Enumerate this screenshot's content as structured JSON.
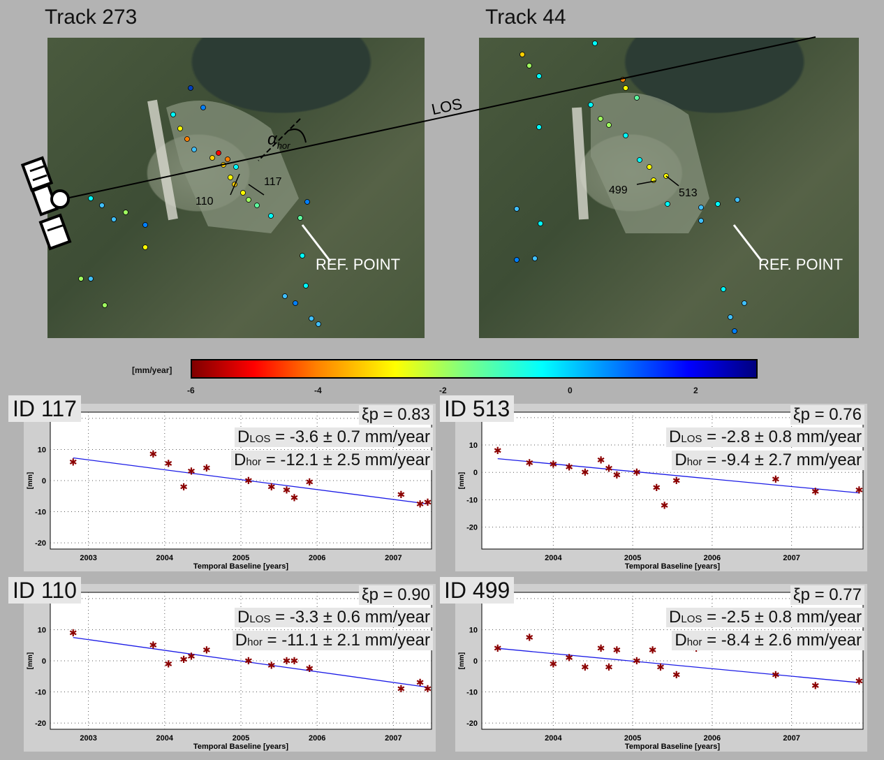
{
  "maps": [
    {
      "title": "Track 273",
      "annotations": {
        "los": "LOS",
        "alpha": "α",
        "alpha_sub": "hor",
        "ref": "REF. POINT",
        "pt_a": "117",
        "pt_b": "110"
      }
    },
    {
      "title": "Track 44",
      "annotations": {
        "ref": "REF. POINT",
        "pt_a": "499",
        "pt_b": "513"
      }
    }
  ],
  "colorbar": {
    "unit": "[mm/year]",
    "ticks": [
      "-6",
      "-4",
      "-2",
      "0",
      "2"
    ],
    "min": -6,
    "max": 3
  },
  "chart_data": [
    {
      "type": "scatter",
      "id_label": "ID 117",
      "xi": "ξp = 0.83",
      "dlos": "-3.6 ± 0.7 mm/year",
      "dhor": "-12.1 ± 2.5 mm/year",
      "xlabel": "Temporal Baseline [years]",
      "ylabel": "[mm]",
      "xlim": [
        2002.5,
        2007.5
      ],
      "ylim": [
        -22,
        22
      ],
      "xticks": [
        "2003",
        "2004",
        "2005",
        "2006",
        "2007"
      ],
      "yticks": [
        "-20",
        "-10",
        "0",
        "10",
        "20"
      ],
      "points": [
        [
          2002.8,
          6
        ],
        [
          2003.85,
          8.5
        ],
        [
          2004.05,
          5.5
        ],
        [
          2004.25,
          -2
        ],
        [
          2004.35,
          3
        ],
        [
          2004.55,
          4
        ],
        [
          2005.1,
          0
        ],
        [
          2005.4,
          -2
        ],
        [
          2005.6,
          -3
        ],
        [
          2005.7,
          -5.5
        ],
        [
          2005.9,
          -0.5
        ],
        [
          2007.1,
          -4.5
        ],
        [
          2007.35,
          -7.5
        ],
        [
          2007.45,
          -7
        ]
      ],
      "fit": [
        [
          2002.8,
          7.3
        ],
        [
          2007.45,
          -7.5
        ]
      ]
    },
    {
      "type": "scatter",
      "id_label": "ID 513",
      "xi": "ξp = 0.76",
      "dlos": "-2.8 ± 0.8 mm/year",
      "dhor": "-9.4 ± 2.7 mm/year",
      "xlabel": "Temporal Baseline [years]",
      "ylabel": "[mm]",
      "xlim": [
        2003.1,
        2007.9
      ],
      "ylim": [
        -28,
        22
      ],
      "xticks": [
        "2004",
        "2005",
        "2006",
        "2007"
      ],
      "yticks": [
        "-20",
        "-10",
        "0",
        "10",
        "20"
      ],
      "points": [
        [
          2003.3,
          8
        ],
        [
          2003.7,
          3.5
        ],
        [
          2004.0,
          3
        ],
        [
          2004.2,
          2
        ],
        [
          2004.4,
          0
        ],
        [
          2004.6,
          4.5
        ],
        [
          2004.7,
          1.5
        ],
        [
          2004.8,
          -1
        ],
        [
          2005.05,
          0
        ],
        [
          2005.3,
          -5.5
        ],
        [
          2005.4,
          -12
        ],
        [
          2005.55,
          -3
        ],
        [
          2005.8,
          2
        ],
        [
          2006.8,
          -2.5
        ],
        [
          2007.3,
          -7
        ],
        [
          2007.85,
          -6.5
        ]
      ],
      "fit": [
        [
          2003.3,
          5
        ],
        [
          2007.85,
          -7.5
        ]
      ]
    },
    {
      "type": "scatter",
      "id_label": "ID 110",
      "xi": "ξp = 0.90",
      "dlos": "-3.3 ± 0.6 mm/year",
      "dhor": "-11.1 ± 2.1 mm/year",
      "xlabel": "Temporal Baseline [years]",
      "ylabel": "[mm]",
      "xlim": [
        2002.5,
        2007.5
      ],
      "ylim": [
        -22,
        22
      ],
      "xticks": [
        "2003",
        "2004",
        "2005",
        "2006",
        "2007"
      ],
      "yticks": [
        "-20",
        "-10",
        "0",
        "10",
        "20"
      ],
      "points": [
        [
          2002.8,
          9
        ],
        [
          2003.85,
          5
        ],
        [
          2004.05,
          -1
        ],
        [
          2004.25,
          0.5
        ],
        [
          2004.35,
          1.5
        ],
        [
          2004.55,
          3.5
        ],
        [
          2005.1,
          0
        ],
        [
          2005.4,
          -1.5
        ],
        [
          2005.6,
          0
        ],
        [
          2005.7,
          0
        ],
        [
          2005.9,
          -2.5
        ],
        [
          2007.1,
          -9
        ],
        [
          2007.35,
          -7
        ],
        [
          2007.45,
          -9
        ]
      ],
      "fit": [
        [
          2002.8,
          7.5
        ],
        [
          2007.45,
          -8.5
        ]
      ]
    },
    {
      "type": "scatter",
      "id_label": "ID 499",
      "xi": "ξp = 0.77",
      "dlos": "-2.5 ± 0.8 mm/year",
      "dhor": "-8.4 ± 2.6 mm/year",
      "xlabel": "Temporal Baseline [years]",
      "ylabel": "[mm]",
      "xlim": [
        2003.1,
        2007.9
      ],
      "ylim": [
        -22,
        22
      ],
      "xticks": [
        "2004",
        "2005",
        "2006",
        "2007"
      ],
      "yticks": [
        "-20",
        "-10",
        "0",
        "10",
        "20"
      ],
      "points": [
        [
          2003.3,
          4
        ],
        [
          2003.7,
          7.5
        ],
        [
          2004.0,
          -1
        ],
        [
          2004.2,
          1
        ],
        [
          2004.4,
          -2
        ],
        [
          2004.6,
          4
        ],
        [
          2004.7,
          -2
        ],
        [
          2004.8,
          3.5
        ],
        [
          2005.05,
          0
        ],
        [
          2005.25,
          3.5
        ],
        [
          2005.35,
          -2
        ],
        [
          2005.55,
          -4.5
        ],
        [
          2005.8,
          4
        ],
        [
          2006.8,
          -4.5
        ],
        [
          2007.3,
          -8
        ],
        [
          2007.85,
          -6.5
        ]
      ],
      "fit": [
        [
          2003.3,
          4
        ],
        [
          2007.85,
          -7
        ]
      ]
    }
  ]
}
